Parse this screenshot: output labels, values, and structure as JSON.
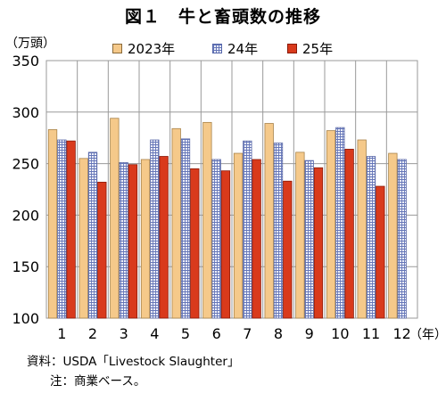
{
  "chart_data": {
    "type": "bar",
    "title": "図１　牛と畜頭数の推移",
    "ylabel": "（万頭）",
    "xlabel": "（年）",
    "ylim": [
      100,
      350
    ],
    "yticks": [
      100,
      150,
      200,
      250,
      300,
      350
    ],
    "categories": [
      "1",
      "2",
      "3",
      "4",
      "5",
      "6",
      "7",
      "8",
      "9",
      "10",
      "11",
      "12"
    ],
    "grid": true,
    "legend_position": "top",
    "series": [
      {
        "name": "2023年",
        "color": "#f5c98a",
        "pattern": "solid",
        "values": [
          283,
          255,
          294,
          254,
          284,
          290,
          260,
          289,
          261,
          282,
          273,
          260
        ]
      },
      {
        "name": "24年",
        "color": "#a8b4df",
        "pattern": "grid",
        "values": [
          273,
          261,
          251,
          273,
          274,
          254,
          272,
          270,
          253,
          285,
          257,
          254
        ]
      },
      {
        "name": "25年",
        "color": "#d93a1c",
        "pattern": "solid",
        "values": [
          272,
          232,
          249,
          257,
          245,
          243,
          254,
          233,
          246,
          264,
          228,
          null
        ]
      }
    ]
  },
  "footer": {
    "source": "資料：USDA「Livestock Slaughter」",
    "note": "注：商業ベース。"
  }
}
